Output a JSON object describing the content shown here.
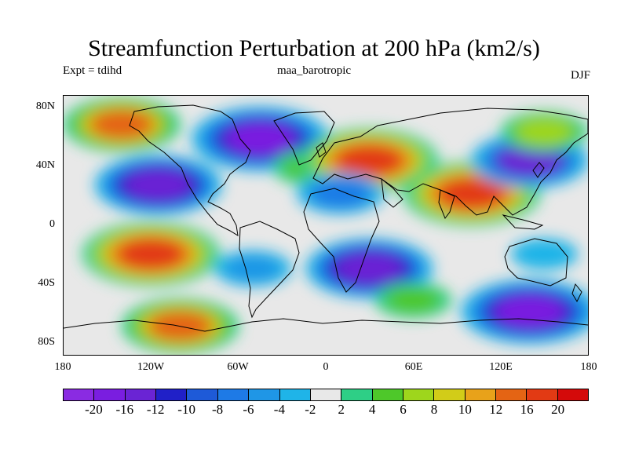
{
  "title": "Streamfunction Perturbation at 200 hPa (km2/s)",
  "subtitle_left": "Expt = tdihd",
  "subtitle_center": "maa_barotropic",
  "subtitle_right": "DJF",
  "map": {
    "projection": "cylindrical-equidistant",
    "lon_range": [
      -180,
      180
    ],
    "lat_range": [
      -90,
      90
    ],
    "background_color": "#e8e8e8",
    "coastline_color": "#000000",
    "y_ticks": [
      "80N",
      "40N",
      "0",
      "40S",
      "80S"
    ],
    "x_ticks": [
      "180",
      "120W",
      "60W",
      "0",
      "60E",
      "120E",
      "180"
    ]
  },
  "colorbar": {
    "labels": [
      "-20",
      "-16",
      "-12",
      "-10",
      "-8",
      "-6",
      "-4",
      "-2",
      "2",
      "4",
      "6",
      "8",
      "10",
      "12",
      "16",
      "20"
    ],
    "colors": [
      "#8a2be2",
      "#7a1ee0",
      "#6a24d4",
      "#2020c8",
      "#1e5ad8",
      "#1e7ae6",
      "#1f96e6",
      "#1fb4e8",
      "#e8e8e8",
      "#2ecf86",
      "#4ec82a",
      "#9ed61c",
      "#d2cc18",
      "#e8a21a",
      "#e46414",
      "#e23a14",
      "#d40a0a"
    ]
  },
  "chart_data": {
    "type": "heatmap",
    "title": "Streamfunction Perturbation at 200 hPa (km2/s)",
    "units": "km2/s",
    "season": "DJF",
    "levels": [
      -20,
      -16,
      -12,
      -10,
      -8,
      -6,
      -4,
      -2,
      2,
      4,
      6,
      8,
      10,
      12,
      16,
      20
    ],
    "anomaly_centers": [
      {
        "lon": -140,
        "lat": 70,
        "value": 14
      },
      {
        "lon": -115,
        "lat": 28,
        "value": -16
      },
      {
        "lon": -45,
        "lat": 60,
        "value": -18
      },
      {
        "lon": -10,
        "lat": 40,
        "value": 6
      },
      {
        "lon": 30,
        "lat": 45,
        "value": 18
      },
      {
        "lon": 10,
        "lat": 22,
        "value": -8
      },
      {
        "lon": 100,
        "lat": 22,
        "value": 18
      },
      {
        "lon": 140,
        "lat": 45,
        "value": -14
      },
      {
        "lon": 150,
        "lat": 65,
        "value": 8
      },
      {
        "lon": -120,
        "lat": -20,
        "value": 18
      },
      {
        "lon": -100,
        "lat": -70,
        "value": 14
      },
      {
        "lon": -50,
        "lat": -30,
        "value": -6
      },
      {
        "lon": 30,
        "lat": -30,
        "value": -16
      },
      {
        "lon": 140,
        "lat": -60,
        "value": -18
      },
      {
        "lon": 150,
        "lat": -20,
        "value": -4
      },
      {
        "lon": 60,
        "lat": -52,
        "value": 6
      }
    ]
  }
}
